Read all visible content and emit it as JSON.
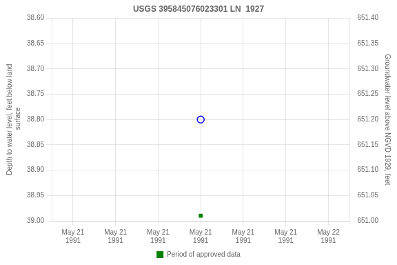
{
  "chart_data": {
    "type": "scatter",
    "title": "USGS 395845076023301 LN  1927",
    "y_label": "Depth to water level, feet below land\n surface",
    "y2_label": "Groundwater level above NGVD 1929, feet",
    "categories": [
      "May 21\n1991",
      "May 21\n1991",
      "May 21\n1991",
      "May 21\n1991",
      "May 21\n1991",
      "May 21\n1991",
      "May 22\n1991"
    ],
    "series": [
      {
        "color": "blue",
        "marker": "open_circle",
        "values": [
          null,
          null,
          null,
          38.8,
          null,
          null,
          null
        ]
      },
      {
        "name": "Period of approved data",
        "color": "#008000",
        "marker": "square",
        "values": [
          null,
          null,
          null,
          38.99,
          null,
          null,
          null
        ]
      }
    ],
    "ylim": [
      39.0,
      38.6
    ],
    "yticks": [
      {
        "value": 38.6,
        "label": "38.60"
      },
      38.65,
      {
        "value": 38.7,
        "label": "38.70"
      },
      38.75,
      {
        "value": 38.8,
        "label": "38.80"
      },
      38.85,
      {
        "value": 38.9,
        "label": "38.90"
      },
      38.95,
      {
        "value": 39.0,
        "label": "39.00"
      }
    ],
    "y2lim": [
      651.0,
      651.4
    ],
    "y2ticks": [
      {
        "value": 651.4,
        "label": "651.40"
      },
      651.35,
      {
        "value": 651.3,
        "label": "651.30"
      },
      651.25,
      {
        "value": 651.2,
        "label": "651.20"
      },
      651.15,
      {
        "value": 651.1,
        "label": "651.10"
      },
      651.05,
      {
        "value": 651.0,
        "label": "651.00"
      }
    ],
    "grid": true,
    "legend": "bottom"
  }
}
